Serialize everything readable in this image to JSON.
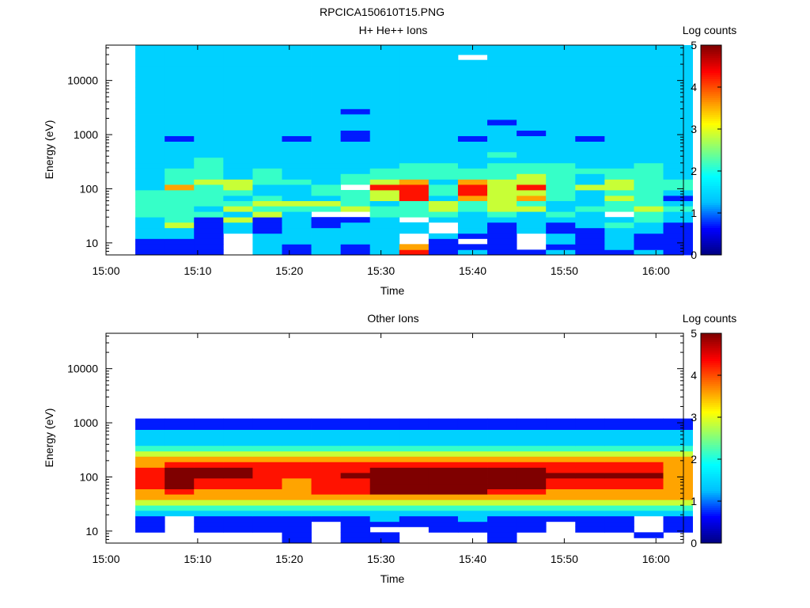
{
  "figure": {
    "title": "RPCICA150610T15.PNG"
  },
  "colorscale": {
    "stops": [
      "#00007f",
      "#0000ff",
      "#00bfff",
      "#00ffff",
      "#7fff7f",
      "#ffff00",
      "#ff7f00",
      "#ff0000",
      "#7f0000"
    ],
    "missing_color": "#ffffff"
  },
  "chart_data": [
    {
      "type": "heatmap",
      "title": "H+ He++ Ions",
      "xlabel": "Time",
      "ylabel": "Energy (eV)",
      "x_ticks": [
        "15:00",
        "15:10",
        "15:20",
        "15:30",
        "15:40",
        "15:50",
        "16:00"
      ],
      "xlim_minutes": [
        0,
        63
      ],
      "y_scale": "log",
      "y_ticks": [
        10,
        100,
        1000,
        10000
      ],
      "y_tick_labels": [
        "10",
        "100",
        "1000",
        "10000"
      ],
      "ylim": [
        6,
        45000
      ],
      "colorbar": {
        "label": "Log counts",
        "range": [
          0,
          5
        ],
        "ticks": [
          "0",
          "1",
          "2",
          "3",
          "4",
          "5"
        ]
      },
      "time_bins_minutes": [
        3.2,
        6.4,
        9.6,
        12.8,
        16.0,
        19.2,
        22.4,
        25.6,
        28.8,
        32.0,
        35.2,
        38.4,
        41.6,
        44.8,
        48.0,
        51.2,
        54.4,
        57.6,
        60.8
      ],
      "energy_bins_eV": [
        6,
        7.5,
        9.5,
        12,
        15,
        19,
        24,
        30,
        38,
        48,
        60,
        75,
        95,
        120,
        150,
        190,
        240,
        300,
        380,
        480,
        600,
        750,
        950,
        1200,
        1500,
        1900,
        2400,
        3000,
        3800,
        4800,
        6000,
        7500,
        9500,
        12000,
        15000,
        19000,
        24000,
        30000,
        38000,
        45000
      ],
      "value_rows_by_energy": [
        "1118212126121121121",
        "1118212125111811211",
        "1118222228181821211",
        "2218222228211821211",
        "2212122222821211221",
        "2412121222821212321",
        "2314121128222222232",
        "3332428833323232832",
        "3324333433434423343",
        "3333444323434322332",
        "3332322346254532431",
        "3333223346364432332",
        "2534223866364634433",
        "2344332345254432433",
        "2332322333333432332",
        "2332322233333333332",
        "2232222223323332232",
        "2232222222222222222",
        "2222222222223222222",
        "2222222222222222222",
        "2222222222222222222",
        "2122212122212221222",
        "2222222122222122222",
        "2222222222222222222",
        "2222222222221222222",
        "2222222222222222222",
        "2222222122222222222",
        "2222222222222222222",
        "2222222222222222222",
        "2222222222222222222",
        "2222222222222222222",
        "2222222222222222222",
        "2222222222222222222",
        "2222222222222222222",
        "2222222222222222222",
        "2222222222222222222",
        "2222222222282222222",
        "2222222222222222222",
        "2222222222222222222"
      ]
    },
    {
      "type": "heatmap",
      "title": "Other Ions",
      "xlabel": "Time",
      "ylabel": "Energy (eV)",
      "x_ticks": [
        "15:00",
        "15:10",
        "15:20",
        "15:30",
        "15:40",
        "15:50",
        "16:00"
      ],
      "xlim_minutes": [
        0,
        63
      ],
      "y_scale": "log",
      "y_ticks": [
        10,
        100,
        1000,
        10000
      ],
      "y_tick_labels": [
        "10",
        "100",
        "1000",
        "10000"
      ],
      "ylim": [
        6,
        45000
      ],
      "colorbar": {
        "label": "Log counts",
        "range": [
          0,
          5
        ],
        "ticks": [
          "0",
          "1",
          "2",
          "3",
          "4",
          "5"
        ]
      },
      "time_bins_minutes": [
        3.2,
        6.4,
        9.6,
        12.8,
        16.0,
        19.2,
        22.4,
        25.6,
        28.8,
        32.0,
        35.2,
        38.4,
        41.6,
        44.8,
        48.0,
        51.2,
        54.4,
        57.6,
        60.8
      ],
      "energy_bins_eV": [
        6,
        7.5,
        9.5,
        12,
        15,
        19,
        24,
        30,
        38,
        48,
        60,
        75,
        95,
        120,
        150,
        190,
        240,
        300,
        380,
        480,
        600,
        750,
        950,
        1200,
        1500,
        1900,
        2400,
        3000,
        3800,
        4800,
        6000,
        7500,
        9500,
        12000,
        15000,
        19000,
        24000,
        30000,
        38000,
        45000
      ],
      "value_rows_by_energy": [
        "8888818118881888888",
        "8888818118881888818",
        "1811118188111181181",
        "1811118111111181181",
        "1811111121121111181",
        "2222222222222222222",
        "3333333333333333333",
        "4444444444444444444",
        "5555555555555555555",
        "5655556677776655555",
        "6766656677777766665",
        "6766656677777766665",
        "6777666777777777775",
        "6777666677777766665",
        "5666666666666666665",
        "5555555555555555555",
        "4444444444444444444",
        "3333333333333333333",
        "2222222222222222222",
        "2222222222222222222",
        "2222222222222222222",
        "1111111111111111111",
        "1111111111111111111",
        "8888888888888888888",
        "8888888888888888888",
        "8888888888888888888",
        "8888888888888888888",
        "8888888888888888888",
        "8888888888888888888",
        "8888888888888888888",
        "8888888888888888888",
        "8888888888888888888",
        "8888888888888888888",
        "8888888888888888888",
        "8888888888888888888",
        "8888888888888888888",
        "8888888888888888888",
        "8888888888888888888",
        "8888888888888888888"
      ]
    }
  ]
}
